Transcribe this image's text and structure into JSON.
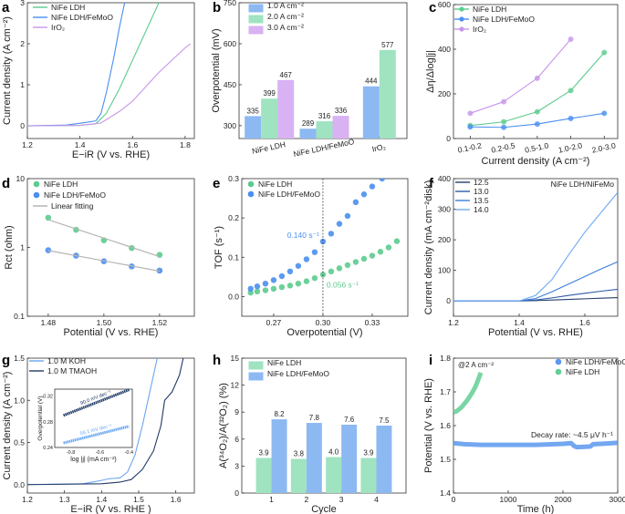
{
  "figure": {
    "panel_labels": [
      "a",
      "b",
      "c",
      "d",
      "e",
      "f",
      "g",
      "h",
      "i"
    ]
  },
  "chart_data": [
    {
      "panel": "a",
      "type": "line",
      "xlabel": "E−iR (V vs. RHE)",
      "ylabel": "Current density (A cm⁻²)",
      "xlim": [
        1.2,
        1.835
      ],
      "ylim": [
        -0.31,
        3
      ],
      "xticks": [
        "1.2",
        "1.4",
        "1.6",
        "1.8"
      ],
      "yticks": [
        "0",
        "1",
        "2",
        "3"
      ],
      "grid": false,
      "legend": "top-left",
      "series": [
        {
          "name": "NiFe LDH",
          "color": "#5ccb8e",
          "x": [
            1.2,
            1.4,
            1.46,
            1.5,
            1.55,
            1.6,
            1.65,
            1.7
          ],
          "y": [
            0,
            0.01,
            0.05,
            0.3,
            0.9,
            1.6,
            2.3,
            3.0
          ]
        },
        {
          "name": "NiFe LDH/FeMoO",
          "color": "#4a8ff0",
          "x": [
            1.2,
            1.35,
            1.42,
            1.46,
            1.48,
            1.5,
            1.53,
            1.55,
            1.57
          ],
          "y": [
            0,
            0.02,
            0.08,
            0.12,
            0.3,
            0.8,
            1.7,
            2.4,
            3.0
          ]
        },
        {
          "name": "IrO₂",
          "color": "#c796ea",
          "x": [
            1.2,
            1.4,
            1.48,
            1.55,
            1.6,
            1.65,
            1.7,
            1.75,
            1.8,
            1.82
          ],
          "y": [
            0,
            0.01,
            0.07,
            0.35,
            0.6,
            0.95,
            1.3,
            1.6,
            1.9,
            2.0
          ]
        }
      ]
    },
    {
      "panel": "b",
      "type": "bar",
      "xlabel": "",
      "ylabel": "Overpotential (mV)",
      "categories": [
        "NiFe LDH",
        "NiFe LDH/FeMoO",
        "IrO₂"
      ],
      "xlim": [
        -0.55,
        2.5
      ],
      "ylim": [
        253,
        750
      ],
      "yticks": [
        "300",
        "450",
        "600",
        "750"
      ],
      "legend": "top-left",
      "series": [
        {
          "name": "1.0 A cm⁻²",
          "color": "#8db9f2",
          "values": [
            335,
            289,
            444
          ],
          "labels": [
            "335",
            "289",
            "444"
          ]
        },
        {
          "name": "2.0 A cm⁻²",
          "color": "#9fe3c0",
          "values": [
            399,
            316,
            577
          ],
          "labels": [
            "399",
            "316",
            "577"
          ]
        },
        {
          "name": "3.0 A cm⁻²",
          "color": "#d8b2f2",
          "values": [
            467,
            336,
            null
          ],
          "labels": [
            "467",
            "336",
            ""
          ]
        }
      ]
    },
    {
      "panel": "c",
      "type": "line",
      "xlabel": "Current density (A cm⁻²)",
      "ylabel": "Δη/Δlog|j|",
      "categories": [
        "0.1-0.2",
        "0.2-0.5",
        "0.5-1.0",
        "1.0-2.0",
        "2.0-3.0"
      ],
      "xlim": [
        -0.5,
        4.4
      ],
      "ylim": [
        0,
        600
      ],
      "yticks": [
        "0",
        "200",
        "400",
        "600"
      ],
      "legend": "top-left",
      "series": [
        {
          "name": "NiFe LDH",
          "color": "#5ccb8e",
          "values": [
            58,
            75,
            120,
            215,
            385
          ]
        },
        {
          "name": "NiFe LDH/FeMoO",
          "color": "#4a8ff0",
          "values": [
            52,
            50,
            65,
            90,
            113
          ]
        },
        {
          "name": "IrO₂",
          "color": "#c796ea",
          "values": [
            113,
            165,
            270,
            445,
            null
          ]
        }
      ]
    },
    {
      "panel": "d",
      "type": "scatter",
      "xlabel": "Potential (V vs. RHE)",
      "ylabel": "Rct (ohm)",
      "ylog": true,
      "xlim": [
        1.4725,
        1.5325
      ],
      "ylim": [
        0.1,
        10
      ],
      "xticks": [
        "1.48",
        "1.50",
        "1.52"
      ],
      "yticks": [
        "0.1",
        "1",
        "10"
      ],
      "legend": "top-left",
      "series": [
        {
          "name": "NiFe LDH",
          "color": "#5ccb8e",
          "x": [
            1.48,
            1.49,
            1.5,
            1.51,
            1.52
          ],
          "y": [
            2.7,
            1.8,
            1.27,
            0.98,
            0.78
          ]
        },
        {
          "name": "NiFe LDH/FeMoO",
          "color": "#4a8ff0",
          "x": [
            1.48,
            1.49,
            1.5,
            1.51,
            1.52
          ],
          "y": [
            0.91,
            0.76,
            0.63,
            0.53,
            0.46
          ]
        }
      ],
      "fit": {
        "name": "Linear fitting",
        "color": "#b5b5b5"
      }
    },
    {
      "panel": "e",
      "type": "scatter",
      "xlabel": "Overpotential (V)",
      "ylabel": "TOF (s⁻¹)",
      "xlim": [
        0.2506,
        0.3517
      ],
      "ylim": [
        -0.05,
        0.3
      ],
      "xticks": [
        "0.27",
        "0.30",
        "0.33"
      ],
      "yticks": [
        "0.0",
        "0.1",
        "0.2",
        "0.3"
      ],
      "legend": "top-left",
      "series": [
        {
          "name": "NiFe LDH",
          "color": "#5ccb8e",
          "x": [
            0.256,
            0.26,
            0.265,
            0.27,
            0.275,
            0.28,
            0.285,
            0.29,
            0.295,
            0.3,
            0.305,
            0.31,
            0.315,
            0.32,
            0.325,
            0.33,
            0.335,
            0.34,
            0.345
          ],
          "y": [
            0.01,
            0.013,
            0.016,
            0.02,
            0.024,
            0.028,
            0.033,
            0.039,
            0.047,
            0.056,
            0.064,
            0.072,
            0.08,
            0.088,
            0.096,
            0.104,
            0.114,
            0.125,
            0.141
          ]
        },
        {
          "name": "NiFe LDH/FeMoO",
          "color": "#4a8ff0",
          "x": [
            0.256,
            0.26,
            0.265,
            0.27,
            0.275,
            0.28,
            0.285,
            0.29,
            0.295,
            0.3,
            0.305,
            0.31,
            0.315,
            0.32,
            0.325,
            0.33,
            0.336
          ],
          "y": [
            0.02,
            0.026,
            0.033,
            0.042,
            0.052,
            0.064,
            0.078,
            0.095,
            0.113,
            0.14,
            0.16,
            0.185,
            0.205,
            0.24,
            0.26,
            0.28,
            0.3
          ]
        }
      ],
      "reference_x": 0.3,
      "annotations": [
        {
          "text": "0.140 s⁻¹",
          "color": "#4a8ff0"
        },
        {
          "text": "0.056 s⁻¹",
          "color": "#5ccb8e"
        }
      ]
    },
    {
      "panel": "f",
      "type": "line",
      "xlabel": "Potential (V vs. RHE)",
      "ylabel": "Current density (mA cm⁻²disk)",
      "xlim": [
        1.2,
        1.7
      ],
      "ylim": [
        -50,
        400
      ],
      "xticks": [
        "1.2",
        "1.4",
        "1.6"
      ],
      "yticks": [
        "0",
        "100",
        "200",
        "300",
        "400"
      ],
      "legend": "top-left",
      "title": "NiFe LDH/NiFeMo",
      "series": [
        {
          "name": "12.5",
          "color": "#233f6e",
          "x": [
            1.2,
            1.4,
            1.45,
            1.5,
            1.55,
            1.6,
            1.65,
            1.7
          ],
          "y": [
            0,
            0,
            1,
            3,
            5,
            7,
            9,
            11
          ]
        },
        {
          "name": "13.0",
          "color": "#2c5aa6",
          "x": [
            1.2,
            1.4,
            1.45,
            1.5,
            1.55,
            1.6,
            1.65,
            1.7
          ],
          "y": [
            0,
            0,
            3,
            10,
            18,
            25,
            32,
            38
          ]
        },
        {
          "name": "13.5",
          "color": "#3c7ddb",
          "x": [
            1.2,
            1.4,
            1.45,
            1.5,
            1.55,
            1.6,
            1.65,
            1.7
          ],
          "y": [
            0,
            0,
            8,
            30,
            55,
            80,
            105,
            128
          ]
        },
        {
          "name": "14.0",
          "color": "#6eaaf2",
          "x": [
            1.2,
            1.4,
            1.45,
            1.5,
            1.55,
            1.6,
            1.65,
            1.7
          ],
          "y": [
            0,
            0,
            18,
            70,
            150,
            225,
            290,
            355
          ]
        }
      ]
    },
    {
      "panel": "g",
      "type": "line",
      "xlabel": "E−iR (V vs. RHE )",
      "ylabel": "Current density (A cm⁻²)",
      "xlim": [
        1.2,
        1.65
      ],
      "ylim": [
        -0.1,
        1.5
      ],
      "xticks": [
        "1.2",
        "1.3",
        "1.4",
        "1.5",
        "1.6"
      ],
      "yticks": [
        "0.0",
        "0.5",
        "1.0",
        "1.5"
      ],
      "legend": "top-left",
      "series": [
        {
          "name": "1.0 M KOH",
          "color": "#6aa6f0",
          "x": [
            1.2,
            1.35,
            1.4,
            1.42,
            1.45,
            1.47,
            1.49,
            1.51,
            1.53,
            1.55
          ],
          "y": [
            0,
            0.01,
            0.05,
            0.07,
            0.08,
            0.15,
            0.35,
            0.7,
            1.1,
            1.5
          ]
        },
        {
          "name": "1.0 M TMAOH",
          "color": "#1f3a66",
          "x": [
            1.2,
            1.4,
            1.45,
            1.48,
            1.51,
            1.54,
            1.56,
            1.57,
            1.59,
            1.61,
            1.62
          ],
          "y": [
            0,
            0.01,
            0.03,
            0.06,
            0.18,
            0.4,
            0.7,
            1.0,
            1.1,
            1.3,
            1.5
          ]
        }
      ],
      "inset": {
        "xlabel": "log |j| (mA cm⁻²)",
        "ylabel": "Overpotential (V)",
        "xlim": [
          -0.91,
          -0.377
        ],
        "ylim": [
          0.24,
          0.331
        ],
        "xticks": [
          "-0.8",
          "-0.6",
          "-0.4"
        ],
        "yticks": [
          "0.24",
          "0.28",
          "0.32"
        ],
        "series": [
          {
            "color": "#1f3a66",
            "slope_label": "90.0 mV dec⁻¹",
            "x": [
              -0.85,
              -0.4
            ],
            "y": [
              0.29,
              0.33
            ]
          },
          {
            "color": "#6aa6f0",
            "slope_label": "59.1 mV dec⁻¹",
            "x": [
              -0.85,
              -0.4
            ],
            "y": [
              0.247,
              0.273
            ]
          }
        ]
      }
    },
    {
      "panel": "h",
      "type": "bar",
      "xlabel": "Cycle",
      "ylabel": "A(³⁴O₂)/A(³²O₂) (%)",
      "categories": [
        "1",
        "2",
        "3",
        "4"
      ],
      "xlim": [
        0.15,
        4.85
      ],
      "ylim": [
        0,
        15
      ],
      "yticks": [
        "0",
        "3",
        "6",
        "9",
        "12",
        "15"
      ],
      "legend": "top-left",
      "series": [
        {
          "name": "NiFe LDH",
          "color": "#9fe3c0",
          "values": [
            3.9,
            3.8,
            4.0,
            3.9
          ],
          "labels": [
            "3.9",
            "3.8",
            "4.0",
            "3.9"
          ]
        },
        {
          "name": "NiFe LDH/FeMoO",
          "color": "#8db9f2",
          "values": [
            8.2,
            7.8,
            7.6,
            7.5
          ],
          "labels": [
            "8.2",
            "7.8",
            "7.6",
            "7.5"
          ]
        }
      ]
    },
    {
      "panel": "i",
      "type": "scatter",
      "xlabel": "Time (h)",
      "ylabel": "Potential (V vs. RHE)",
      "xlim": [
        0,
        3000
      ],
      "ylim": [
        1.4,
        1.8
      ],
      "xticks": [
        "0",
        "1000",
        "2000",
        "3000"
      ],
      "yticks": [
        "1.4",
        "1.5",
        "1.6",
        "1.7",
        "1.8"
      ],
      "legend": "top-right",
      "series": [
        {
          "name": "NiFe LDH/FeMoO",
          "color": "#5a98ee",
          "x": [
            0,
            200,
            500,
            1000,
            1500,
            2000,
            2150,
            2200,
            2250,
            2400,
            2500,
            2550,
            2700,
            3000
          ],
          "y": [
            1.548,
            1.545,
            1.543,
            1.543,
            1.543,
            1.546,
            1.548,
            1.54,
            1.536,
            1.537,
            1.538,
            1.545,
            1.546,
            1.549
          ]
        },
        {
          "name": "NiFe LDH",
          "color": "#62cf94",
          "x": [
            0,
            50,
            100,
            150,
            200,
            250,
            300,
            350,
            400,
            450,
            500
          ],
          "y": [
            1.64,
            1.642,
            1.648,
            1.655,
            1.665,
            1.675,
            1.687,
            1.7,
            1.715,
            1.735,
            1.757
          ]
        }
      ],
      "annotations": [
        {
          "text": "@2 A cm⁻²",
          "color": "#222"
        },
        {
          "text": "Decay rate:  ~4.5 μV h⁻¹",
          "color": "#222"
        }
      ]
    }
  ]
}
